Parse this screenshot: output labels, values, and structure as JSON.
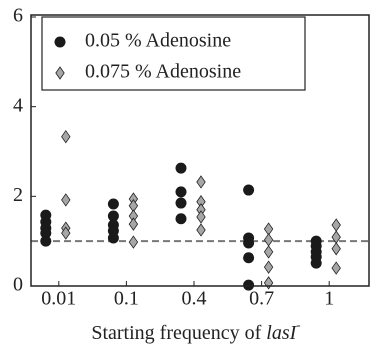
{
  "chart_data": {
    "type": "strip",
    "xlabel": [
      "Starting frequency of ",
      "lasI",
      "-"
    ],
    "categories": [
      "0.01",
      "0.1",
      "0.4",
      "0.7",
      "1"
    ],
    "ylim": [
      0,
      6
    ],
    "yticks": [
      0,
      2,
      4,
      6
    ],
    "reference_line": 1,
    "legend": "upper left",
    "series": [
      {
        "name": "0.05 % Adenosine",
        "marker": "circle",
        "color": "#1a1a1a",
        "values": [
          [
            1.58,
            1.43,
            1.29,
            1.18,
            1.0
          ],
          [
            1.83,
            1.56,
            1.36,
            1.23,
            1.07
          ],
          [
            2.63,
            2.1,
            1.85,
            1.5
          ],
          [
            2.14,
            1.07,
            0.96,
            0.63,
            0.02
          ],
          [
            1.0,
            0.89,
            0.76,
            0.65,
            0.51
          ]
        ]
      },
      {
        "name": "0.075 % Adenosine",
        "marker": "diamond",
        "color": "#a6a6a6",
        "values": [
          [
            3.33,
            1.92,
            1.29,
            1.18
          ],
          [
            1.94,
            1.79,
            1.56,
            1.38,
            0.98
          ],
          [
            2.32,
            1.88,
            1.7,
            1.54,
            1.25
          ],
          [
            1.27,
            1.03,
            0.76,
            0.42,
            0.07
          ],
          [
            1.36,
            1.09,
            0.83,
            0.4
          ]
        ]
      }
    ]
  }
}
